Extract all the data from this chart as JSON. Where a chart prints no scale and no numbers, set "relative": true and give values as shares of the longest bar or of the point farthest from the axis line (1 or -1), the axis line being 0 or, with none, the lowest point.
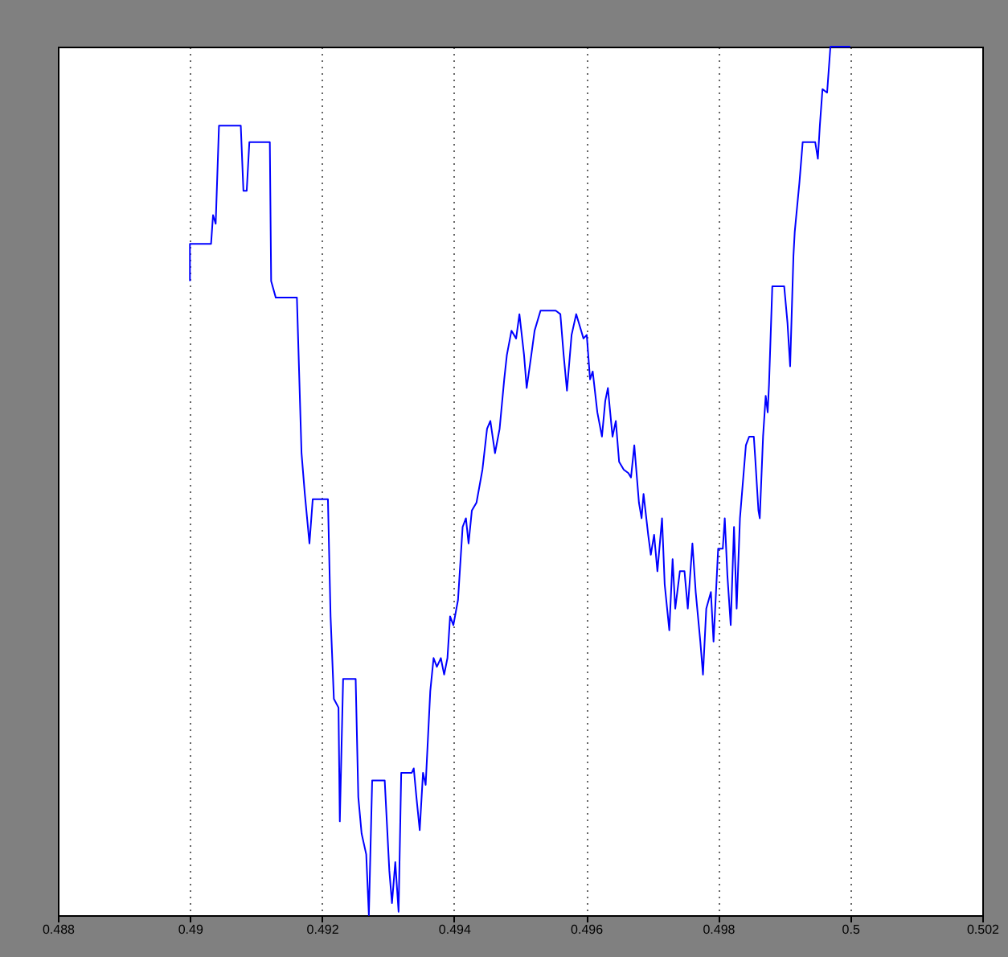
{
  "chart_data": {
    "type": "line",
    "x": [
      0.49,
      0.49,
      0.49032,
      0.49035,
      0.49039,
      0.49044,
      0.49077,
      0.49081,
      0.49086,
      0.4909,
      0.49121,
      0.49123,
      0.4913,
      0.49162,
      0.49169,
      0.49174,
      0.49181,
      0.49186,
      0.49209,
      0.49213,
      0.49218,
      0.49225,
      0.49227,
      0.49232,
      0.49251,
      0.49255,
      0.4926,
      0.49267,
      0.49271,
      0.49276,
      0.49295,
      0.49302,
      0.49306,
      0.49311,
      0.49316,
      0.4932,
      0.49336,
      0.49339,
      0.49343,
      0.49348,
      0.49353,
      0.49357,
      0.49364,
      0.49369,
      0.49374,
      0.4938,
      0.49385,
      0.4939,
      0.49394,
      0.49399,
      0.49406,
      0.49413,
      0.49418,
      0.49422,
      0.49427,
      0.49434,
      0.49443,
      0.4945,
      0.49455,
      0.49462,
      0.49469,
      0.49476,
      0.4948,
      0.49487,
      0.49494,
      0.49499,
      0.49506,
      0.4951,
      0.49517,
      0.49522,
      0.49531,
      0.49554,
      0.49561,
      0.49566,
      0.49571,
      0.49578,
      0.49585,
      0.49589,
      0.49596,
      0.49601,
      0.49606,
      0.4961,
      0.49617,
      0.49624,
      0.49629,
      0.49633,
      0.49636,
      0.4964,
      0.49645,
      0.4965,
      0.49657,
      0.49664,
      0.49668,
      0.49673,
      0.4968,
      0.49684,
      0.49687,
      0.49694,
      0.49698,
      0.49703,
      0.49708,
      0.49715,
      0.49719,
      0.49726,
      0.49731,
      0.49735,
      0.49742,
      0.49749,
      0.49754,
      0.49761,
      0.49766,
      0.49773,
      0.49777,
      0.49782,
      0.49789,
      0.49793,
      0.498,
      0.49807,
      0.4981,
      0.49814,
      0.49819,
      0.49824,
      0.49828,
      0.49833,
      0.49842,
      0.49847,
      0.49854,
      0.49856,
      0.49861,
      0.49863,
      0.49868,
      0.49872,
      0.49875,
      0.49877,
      0.49882,
      0.499,
      0.49905,
      0.49909,
      0.49914,
      0.49916,
      0.49923,
      0.49928,
      0.49947,
      0.49951,
      0.49954,
      0.49958,
      0.49965,
      0.4997,
      0.5
    ],
    "series": [
      {
        "color": "#0000ff",
        "values": [
          0.73,
          0.773,
          0.773,
          0.806,
          0.796,
          0.909,
          0.909,
          0.834,
          0.834,
          0.89,
          0.89,
          0.73,
          0.711,
          0.711,
          0.532,
          0.485,
          0.428,
          0.479,
          0.479,
          0.344,
          0.249,
          0.239,
          0.108,
          0.272,
          0.272,
          0.136,
          0.094,
          0.07,
          0,
          0.155,
          0.155,
          0.051,
          0.014,
          0.061,
          0.004,
          0.164,
          0.164,
          0.169,
          0.136,
          0.098,
          0.164,
          0.15,
          0.258,
          0.296,
          0.286,
          0.296,
          0.277,
          0.296,
          0.344,
          0.334,
          0.363,
          0.447,
          0.457,
          0.428,
          0.466,
          0.475,
          0.513,
          0.56,
          0.569,
          0.532,
          0.56,
          0.617,
          0.645,
          0.673,
          0.664,
          0.692,
          0.645,
          0.607,
          0.645,
          0.673,
          0.696,
          0.696,
          0.692,
          0.645,
          0.604,
          0.668,
          0.692,
          0.682,
          0.664,
          0.668,
          0.617,
          0.626,
          0.579,
          0.551,
          0.592,
          0.607,
          0.583,
          0.551,
          0.569,
          0.522,
          0.513,
          0.509,
          0.504,
          0.541,
          0.475,
          0.457,
          0.485,
          0.438,
          0.415,
          0.438,
          0.396,
          0.457,
          0.381,
          0.328,
          0.41,
          0.353,
          0.396,
          0.396,
          0.353,
          0.428,
          0.372,
          0.315,
          0.277,
          0.353,
          0.372,
          0.315,
          0.422,
          0.422,
          0.457,
          0.391,
          0.334,
          0.447,
          0.353,
          0.457,
          0.541,
          0.551,
          0.551,
          0.528,
          0.466,
          0.457,
          0.551,
          0.598,
          0.579,
          0.611,
          0.724,
          0.724,
          0.682,
          0.632,
          0.759,
          0.787,
          0.843,
          0.89,
          0.89,
          0.871,
          0.909,
          0.951,
          0.947,
          1,
          1
        ]
      }
    ],
    "xlim": [
      0.488,
      0.502
    ],
    "xticks": [
      0.488,
      0.49,
      0.492,
      0.494,
      0.496,
      0.498,
      0.5,
      0.502
    ],
    "relative": true,
    "grid": true,
    "line_style": "solid"
  }
}
